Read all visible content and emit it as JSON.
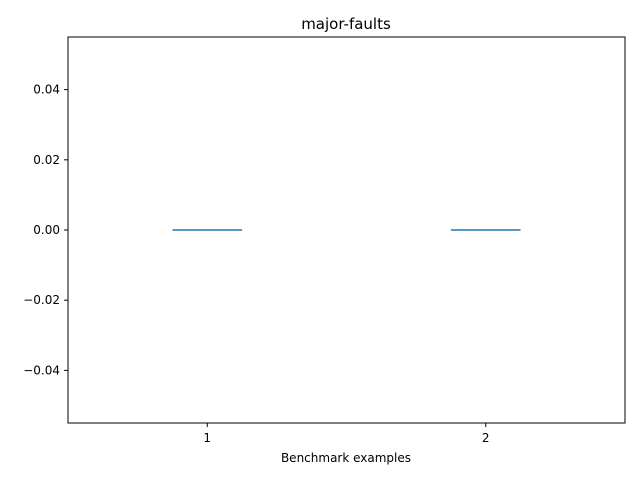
{
  "chart_data": {
    "type": "box",
    "title": "major-faults",
    "xlabel": "Benchmark examples",
    "ylabel": "",
    "categories": [
      "1",
      "2"
    ],
    "series": [
      {
        "values": [
          0.0,
          0.0
        ]
      }
    ],
    "xlim": [
      0.5,
      2.5
    ],
    "ylim": [
      -0.055,
      0.055
    ],
    "yticks": [
      -0.04,
      -0.02,
      0.0,
      0.02,
      0.04
    ],
    "ytick_labels": [
      "−0.04",
      "−0.02",
      "0.00",
      "0.02",
      "0.04"
    ],
    "grid": false,
    "colors": {
      "median": "#1f77b4",
      "axes": "#000000"
    }
  }
}
